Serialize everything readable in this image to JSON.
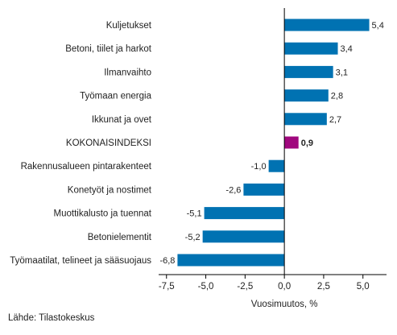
{
  "chart_data": {
    "type": "bar",
    "orientation": "horizontal",
    "categories": [
      "Kuljetukset",
      "Betoni, tiilet ja harkot",
      "Ilmanvaihto",
      "Työmaan energia",
      "Ikkunat ja ovet",
      "KOKONAISINDEKSI",
      "Rakennusalueen pintarakenteet",
      "Konetyöt ja nostimet",
      "Muottikalusto ja tuennat",
      "Betonielementit",
      "Työmaatilat, telineet ja sääsuojaus"
    ],
    "values": [
      5.4,
      3.4,
      3.1,
      2.8,
      2.7,
      0.9,
      -1.0,
      -2.6,
      -5.1,
      -5.2,
      -6.8
    ],
    "value_labels": [
      "5,4",
      "3,4",
      "3,1",
      "2,8",
      "2,7",
      "0,9",
      "-1,0",
      "-2,6",
      "-5,1",
      "-5,2",
      "-6,8"
    ],
    "highlight_category": "KOKONAISINDEKSI",
    "xlim": [
      -8,
      6.5
    ],
    "xticks": [
      -7.5,
      -5,
      -2.5,
      0,
      2.5,
      5
    ],
    "xtick_labels": [
      "-7,5",
      "-5,0",
      "-2,5",
      "0,0",
      "2,5",
      "5,0"
    ],
    "xlabel": "Vuosimuutos, %",
    "ylabel": "",
    "title": "",
    "grid": false,
    "colors": {
      "bar": "#0072b2",
      "highlight": "#a0087e",
      "axis": "#000000"
    }
  },
  "source": "Lähde: Tilastokeskus"
}
